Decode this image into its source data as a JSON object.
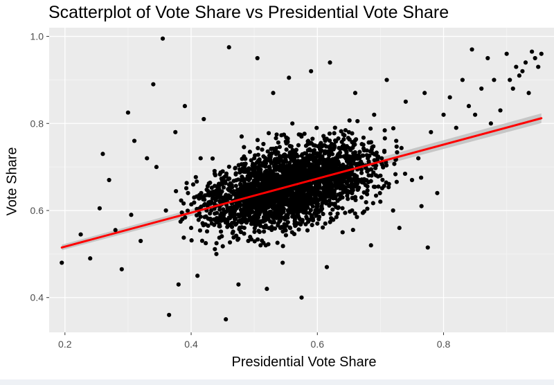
{
  "chart_data": {
    "type": "scatter",
    "title": "Scatterplot of Vote Share vs Presidential Vote Share",
    "xlabel": "Presidential Vote Share",
    "ylabel": "Vote Share",
    "xlim": [
      0.175,
      0.975
    ],
    "ylim": [
      0.32,
      1.02
    ],
    "x_ticks": [
      0.2,
      0.4,
      0.6,
      0.8
    ],
    "y_ticks": [
      0.4,
      0.6,
      0.8,
      1.0
    ],
    "x_tick_labels": [
      "0.2",
      "0.4",
      "0.6",
      "0.8"
    ],
    "y_tick_labels": [
      "0.4",
      "0.6",
      "0.8",
      "1.0"
    ],
    "grid": true,
    "panel_background": "#ebebeb",
    "point_color": "#000000",
    "fit_line": {
      "color": "#ff0000",
      "band_color": "#bdbdbd",
      "x": [
        0.195,
        0.955
      ],
      "y": [
        0.515,
        0.812
      ]
    },
    "points": [
      [
        0.195,
        0.48
      ],
      [
        0.225,
        0.545
      ],
      [
        0.24,
        0.49
      ],
      [
        0.255,
        0.605
      ],
      [
        0.26,
        0.73
      ],
      [
        0.27,
        0.67
      ],
      [
        0.28,
        0.555
      ],
      [
        0.29,
        0.465
      ],
      [
        0.3,
        0.825
      ],
      [
        0.305,
        0.59
      ],
      [
        0.31,
        0.76
      ],
      [
        0.32,
        0.53
      ],
      [
        0.33,
        0.72
      ],
      [
        0.34,
        0.89
      ],
      [
        0.345,
        0.7
      ],
      [
        0.355,
        0.995
      ],
      [
        0.36,
        0.6
      ],
      [
        0.365,
        0.36
      ],
      [
        0.375,
        0.78
      ],
      [
        0.38,
        0.43
      ],
      [
        0.39,
        0.84
      ],
      [
        0.395,
        0.64
      ],
      [
        0.4,
        0.56
      ],
      [
        0.41,
        0.45
      ],
      [
        0.415,
        0.72
      ],
      [
        0.42,
        0.81
      ],
      [
        0.43,
        0.62
      ],
      [
        0.44,
        0.5
      ],
      [
        0.45,
        0.69
      ],
      [
        0.455,
        0.35
      ],
      [
        0.46,
        0.975
      ],
      [
        0.47,
        0.58
      ],
      [
        0.475,
        0.43
      ],
      [
        0.48,
        0.77
      ],
      [
        0.49,
        0.66
      ],
      [
        0.5,
        0.72
      ],
      [
        0.505,
        0.95
      ],
      [
        0.51,
        0.52
      ],
      [
        0.52,
        0.42
      ],
      [
        0.525,
        0.62
      ],
      [
        0.53,
        0.87
      ],
      [
        0.54,
        0.61
      ],
      [
        0.545,
        0.48
      ],
      [
        0.55,
        0.69
      ],
      [
        0.555,
        0.905
      ],
      [
        0.56,
        0.55
      ],
      [
        0.57,
        0.75
      ],
      [
        0.575,
        0.4
      ],
      [
        0.58,
        0.63
      ],
      [
        0.59,
        0.92
      ],
      [
        0.6,
        0.57
      ],
      [
        0.61,
        0.7
      ],
      [
        0.615,
        0.47
      ],
      [
        0.62,
        0.94
      ],
      [
        0.63,
        0.66
      ],
      [
        0.64,
        0.55
      ],
      [
        0.65,
        0.78
      ],
      [
        0.655,
        0.6
      ],
      [
        0.66,
        0.87
      ],
      [
        0.67,
        0.63
      ],
      [
        0.68,
        0.72
      ],
      [
        0.685,
        0.52
      ],
      [
        0.69,
        0.82
      ],
      [
        0.7,
        0.68
      ],
      [
        0.71,
        0.9
      ],
      [
        0.72,
        0.6
      ],
      [
        0.725,
        0.76
      ],
      [
        0.73,
        0.56
      ],
      [
        0.74,
        0.85
      ],
      [
        0.75,
        0.67
      ],
      [
        0.76,
        0.72
      ],
      [
        0.765,
        0.61
      ],
      [
        0.77,
        0.87
      ],
      [
        0.775,
        0.515
      ],
      [
        0.78,
        0.78
      ],
      [
        0.79,
        0.64
      ],
      [
        0.8,
        0.82
      ],
      [
        0.81,
        0.86
      ],
      [
        0.82,
        0.79
      ],
      [
        0.83,
        0.9
      ],
      [
        0.84,
        0.84
      ],
      [
        0.845,
        0.97
      ],
      [
        0.85,
        0.82
      ],
      [
        0.86,
        0.88
      ],
      [
        0.87,
        0.95
      ],
      [
        0.875,
        0.8
      ],
      [
        0.88,
        0.9
      ],
      [
        0.89,
        0.83
      ],
      [
        0.9,
        0.96
      ],
      [
        0.91,
        0.88
      ],
      [
        0.92,
        0.91
      ],
      [
        0.93,
        0.94
      ],
      [
        0.94,
        0.965
      ],
      [
        0.945,
        0.95
      ],
      [
        0.95,
        0.93
      ],
      [
        0.955,
        0.96
      ],
      [
        0.935,
        0.87
      ],
      [
        0.925,
        0.92
      ],
      [
        0.915,
        0.93
      ],
      [
        0.905,
        0.9
      ]
    ]
  }
}
